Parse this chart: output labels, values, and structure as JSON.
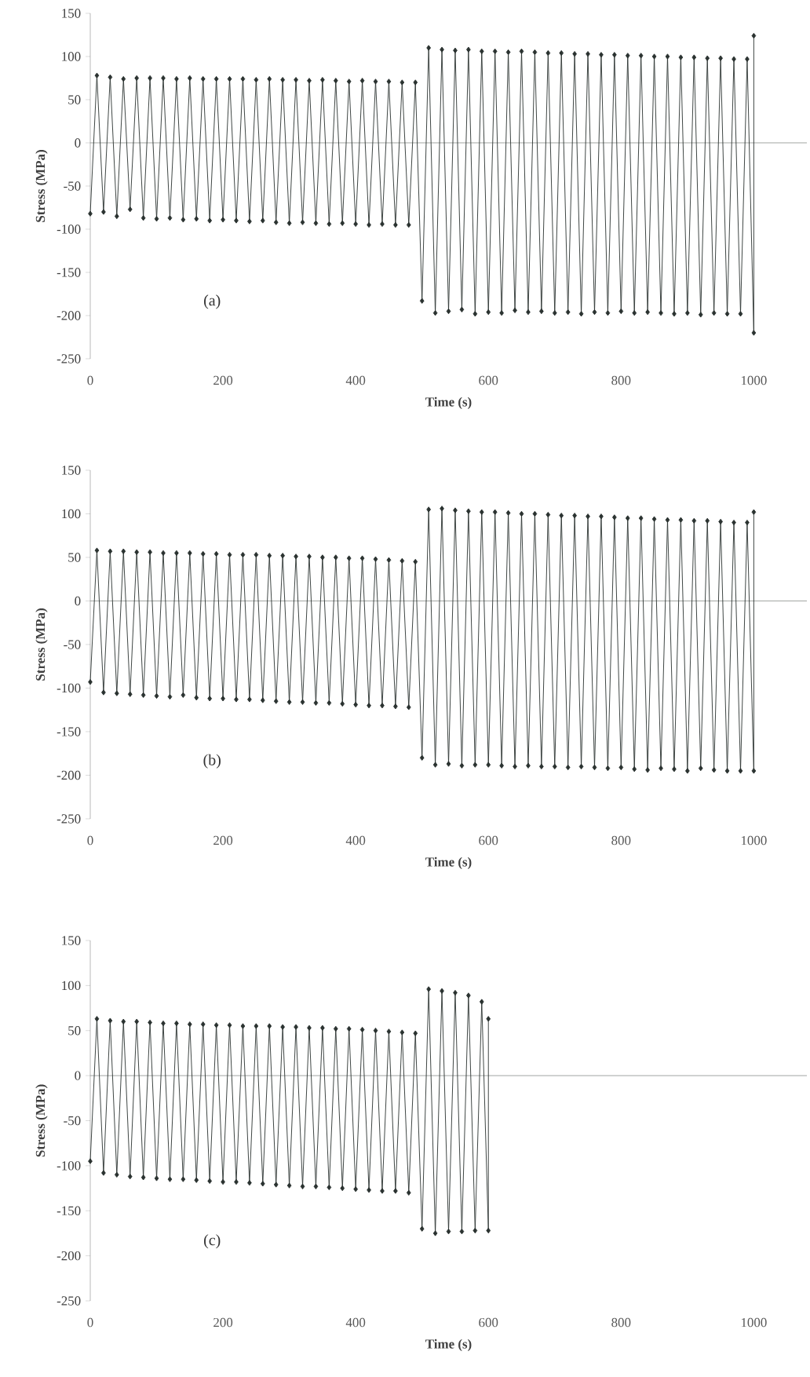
{
  "chart_data": [
    {
      "type": "line",
      "xlabel": "Time (s)",
      "ylabel": "Stress (MPa)",
      "annotations": [
        "(a)"
      ],
      "color": "#2a3230",
      "marker": "diamond",
      "xlim": [
        0,
        1080
      ],
      "ylim": [
        -250,
        150
      ],
      "xticks": [
        0,
        200,
        400,
        600,
        800,
        1000
      ],
      "yticks": [
        -250,
        -200,
        -150,
        -100,
        -50,
        0,
        50,
        100,
        150
      ],
      "ref_lines": [
        {
          "axis": "y",
          "value": 0,
          "color": "#8a8f8c"
        }
      ],
      "x": [
        0,
        10,
        20,
        30,
        40,
        50,
        60,
        70,
        80,
        90,
        100,
        110,
        120,
        130,
        140,
        150,
        160,
        170,
        180,
        190,
        200,
        210,
        220,
        230,
        240,
        250,
        260,
        270,
        280,
        290,
        300,
        310,
        320,
        330,
        340,
        350,
        360,
        370,
        380,
        390,
        400,
        410,
        420,
        430,
        440,
        450,
        460,
        470,
        480,
        490,
        500,
        510,
        520,
        530,
        540,
        550,
        560,
        570,
        580,
        590,
        600,
        610,
        620,
        630,
        640,
        650,
        660,
        670,
        680,
        690,
        700,
        710,
        720,
        730,
        740,
        750,
        760,
        770,
        780,
        790,
        800,
        810,
        820,
        830,
        840,
        850,
        860,
        870,
        880,
        890,
        900,
        910,
        920,
        930,
        940,
        950,
        960,
        970,
        980,
        990,
        1000,
        1000
      ],
      "values": [
        -82,
        78,
        -80,
        76,
        -85,
        74,
        -77,
        75,
        -87,
        75,
        -88,
        75,
        -87,
        74,
        -89,
        75,
        -88,
        74,
        -90,
        74,
        -89,
        74,
        -90,
        74,
        -91,
        73,
        -90,
        74,
        -92,
        73,
        -93,
        73,
        -92,
        72,
        -93,
        73,
        -94,
        72,
        -93,
        71,
        -94,
        72,
        -95,
        71,
        -94,
        71,
        -95,
        70,
        -95,
        70,
        -183,
        110,
        -197,
        108,
        -195,
        107,
        -193,
        108,
        -198,
        106,
        -196,
        106,
        -197,
        105,
        -194,
        106,
        -196,
        105,
        -195,
        104,
        -197,
        104,
        -196,
        103,
        -198,
        103,
        -196,
        102,
        -197,
        102,
        -195,
        101,
        -197,
        101,
        -196,
        100,
        -197,
        100,
        -198,
        99,
        -197,
        99,
        -199,
        98,
        -197,
        98,
        -198,
        97,
        -198,
        97,
        -220,
        124
      ]
    },
    {
      "type": "line",
      "xlabel": "Time (s)",
      "ylabel": "Stress (MPa)",
      "annotations": [
        "(b)"
      ],
      "color": "#2a3230",
      "marker": "diamond",
      "xlim": [
        0,
        1080
      ],
      "ylim": [
        -250,
        150
      ],
      "xticks": [
        0,
        200,
        400,
        600,
        800,
        1000
      ],
      "yticks": [
        -250,
        -200,
        -150,
        -100,
        -50,
        0,
        50,
        100,
        150
      ],
      "ref_lines": [
        {
          "axis": "y",
          "value": 0,
          "color": "#8a8f8c"
        }
      ],
      "x": [
        0,
        10,
        20,
        30,
        40,
        50,
        60,
        70,
        80,
        90,
        100,
        110,
        120,
        130,
        140,
        150,
        160,
        170,
        180,
        190,
        200,
        210,
        220,
        230,
        240,
        250,
        260,
        270,
        280,
        290,
        300,
        310,
        320,
        330,
        340,
        350,
        360,
        370,
        380,
        390,
        400,
        410,
        420,
        430,
        440,
        450,
        460,
        470,
        480,
        490,
        500,
        510,
        520,
        530,
        540,
        550,
        560,
        570,
        580,
        590,
        600,
        610,
        620,
        630,
        640,
        650,
        660,
        670,
        680,
        690,
        700,
        710,
        720,
        730,
        740,
        750,
        760,
        770,
        780,
        790,
        800,
        810,
        820,
        830,
        840,
        850,
        860,
        870,
        880,
        890,
        900,
        910,
        920,
        930,
        940,
        950,
        960,
        970,
        980,
        990,
        1000,
        1000
      ],
      "values": [
        -93,
        58,
        -105,
        57,
        -106,
        57,
        -107,
        56,
        -108,
        56,
        -109,
        55,
        -110,
        55,
        -108,
        55,
        -111,
        54,
        -112,
        54,
        -112,
        53,
        -113,
        53,
        -113,
        53,
        -114,
        52,
        -115,
        52,
        -116,
        51,
        -116,
        51,
        -117,
        50,
        -117,
        50,
        -118,
        49,
        -119,
        49,
        -120,
        48,
        -120,
        47,
        -121,
        46,
        -122,
        45,
        -180,
        105,
        -188,
        106,
        -187,
        104,
        -189,
        103,
        -188,
        102,
        -188,
        102,
        -189,
        101,
        -190,
        100,
        -189,
        100,
        -190,
        99,
        -190,
        98,
        -191,
        98,
        -190,
        97,
        -191,
        97,
        -192,
        96,
        -191,
        95,
        -193,
        95,
        -194,
        94,
        -192,
        93,
        -193,
        93,
        -195,
        92,
        -192,
        92,
        -194,
        91,
        -195,
        90,
        -195,
        90,
        -195,
        102
      ]
    },
    {
      "type": "line",
      "xlabel": "Time (s)",
      "ylabel": "Stress (MPa)",
      "annotations": [
        "(c)"
      ],
      "color": "#2a3230",
      "marker": "diamond",
      "xlim": [
        0,
        1080
      ],
      "ylim": [
        -250,
        150
      ],
      "xticks": [
        0,
        200,
        400,
        600,
        800,
        1000
      ],
      "yticks": [
        -250,
        -200,
        -150,
        -100,
        -50,
        0,
        50,
        100,
        150
      ],
      "ref_lines": [
        {
          "axis": "y",
          "value": 0,
          "color": "#8a8f8c"
        }
      ],
      "x": [
        0,
        10,
        20,
        30,
        40,
        50,
        60,
        70,
        80,
        90,
        100,
        110,
        120,
        130,
        140,
        150,
        160,
        170,
        180,
        190,
        200,
        210,
        220,
        230,
        240,
        250,
        260,
        270,
        280,
        290,
        300,
        310,
        320,
        330,
        340,
        350,
        360,
        370,
        380,
        390,
        400,
        410,
        420,
        430,
        440,
        450,
        460,
        470,
        480,
        490,
        500,
        510,
        520,
        530,
        540,
        550,
        560,
        570,
        580,
        590,
        600,
        600
      ],
      "values": [
        -95,
        63,
        -108,
        61,
        -110,
        60,
        -112,
        60,
        -113,
        59,
        -114,
        58,
        -115,
        58,
        -115,
        57,
        -116,
        57,
        -117,
        56,
        -118,
        56,
        -118,
        55,
        -119,
        55,
        -120,
        55,
        -121,
        54,
        -122,
        54,
        -123,
        53,
        -123,
        53,
        -124,
        52,
        -125,
        52,
        -126,
        51,
        -127,
        50,
        -128,
        49,
        -128,
        48,
        -130,
        47,
        -170,
        96,
        -175,
        94,
        -173,
        92,
        -173,
        89,
        -172,
        82,
        -172,
        63
      ]
    }
  ]
}
